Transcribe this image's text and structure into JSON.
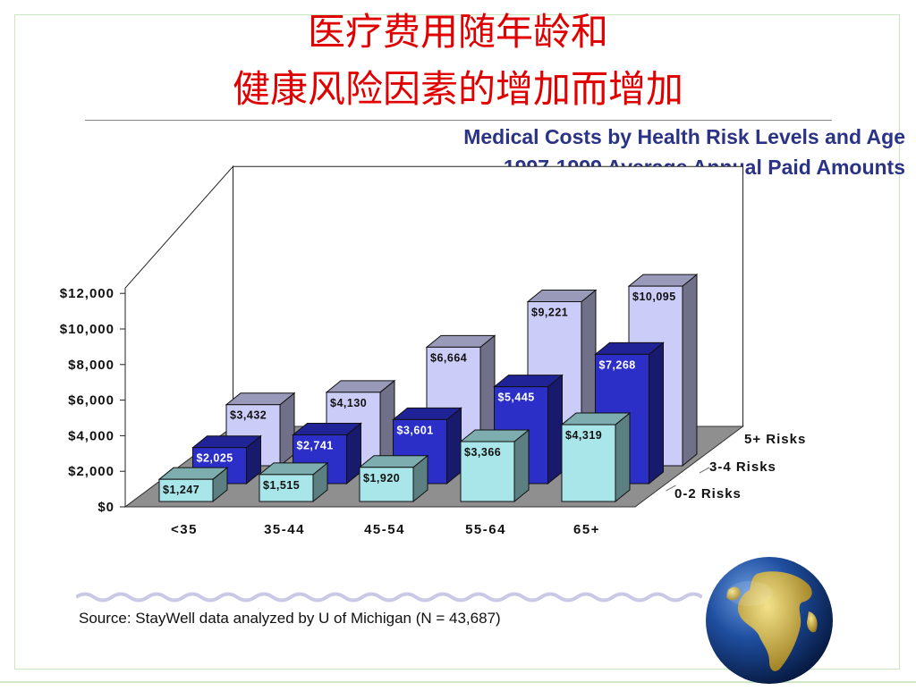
{
  "slide": {
    "title_cn_line1": "医疗费用随年龄和",
    "title_cn_line2": "健康风险因素的增加而增加",
    "title_en_line1": "Medical Costs by Health Risk Levels and Age",
    "title_en_line2": "1997-1999 Average Annual Paid Amounts",
    "source": "Source: StayWell data analyzed by U of Michigan (N = 43,687)",
    "title_color": "#e00000",
    "subtitle_color": "#2a3385"
  },
  "chart_data": {
    "type": "bar",
    "categories": [
      "<35",
      "35-44",
      "45-54",
      "55-64",
      "65+"
    ],
    "series": [
      {
        "name": "0-2 Risks",
        "color": "#a8e6ea",
        "values": [
          1247,
          1515,
          1920,
          3366,
          4319
        ]
      },
      {
        "name": "3-4 Risks",
        "color": "#2b2fc8",
        "values": [
          2025,
          2741,
          3601,
          5445,
          7268
        ]
      },
      {
        "name": "5+ Risks",
        "color": "#ccccf8",
        "values": [
          3432,
          4130,
          6664,
          9221,
          10095
        ]
      }
    ],
    "data_labels": [
      [
        "$1,247",
        "$1,515",
        "$1,920",
        "$3,366",
        "$4,319"
      ],
      [
        "$2,025",
        "$2,741",
        "$3,601",
        "$5,445",
        "$7,268"
      ],
      [
        "$3,432",
        "$4,130",
        "$6,664",
        "$9,221",
        "$10,095"
      ]
    ],
    "y_ticks": [
      0,
      2000,
      4000,
      6000,
      8000,
      10000,
      12000
    ],
    "y_tick_labels": [
      "$0",
      "$2,000",
      "$4,000",
      "$6,000",
      "$8,000",
      "$10,000",
      "$12,000"
    ],
    "ylim": [
      0,
      12000
    ],
    "projection": "3d-clustered-depth",
    "grid": false
  }
}
